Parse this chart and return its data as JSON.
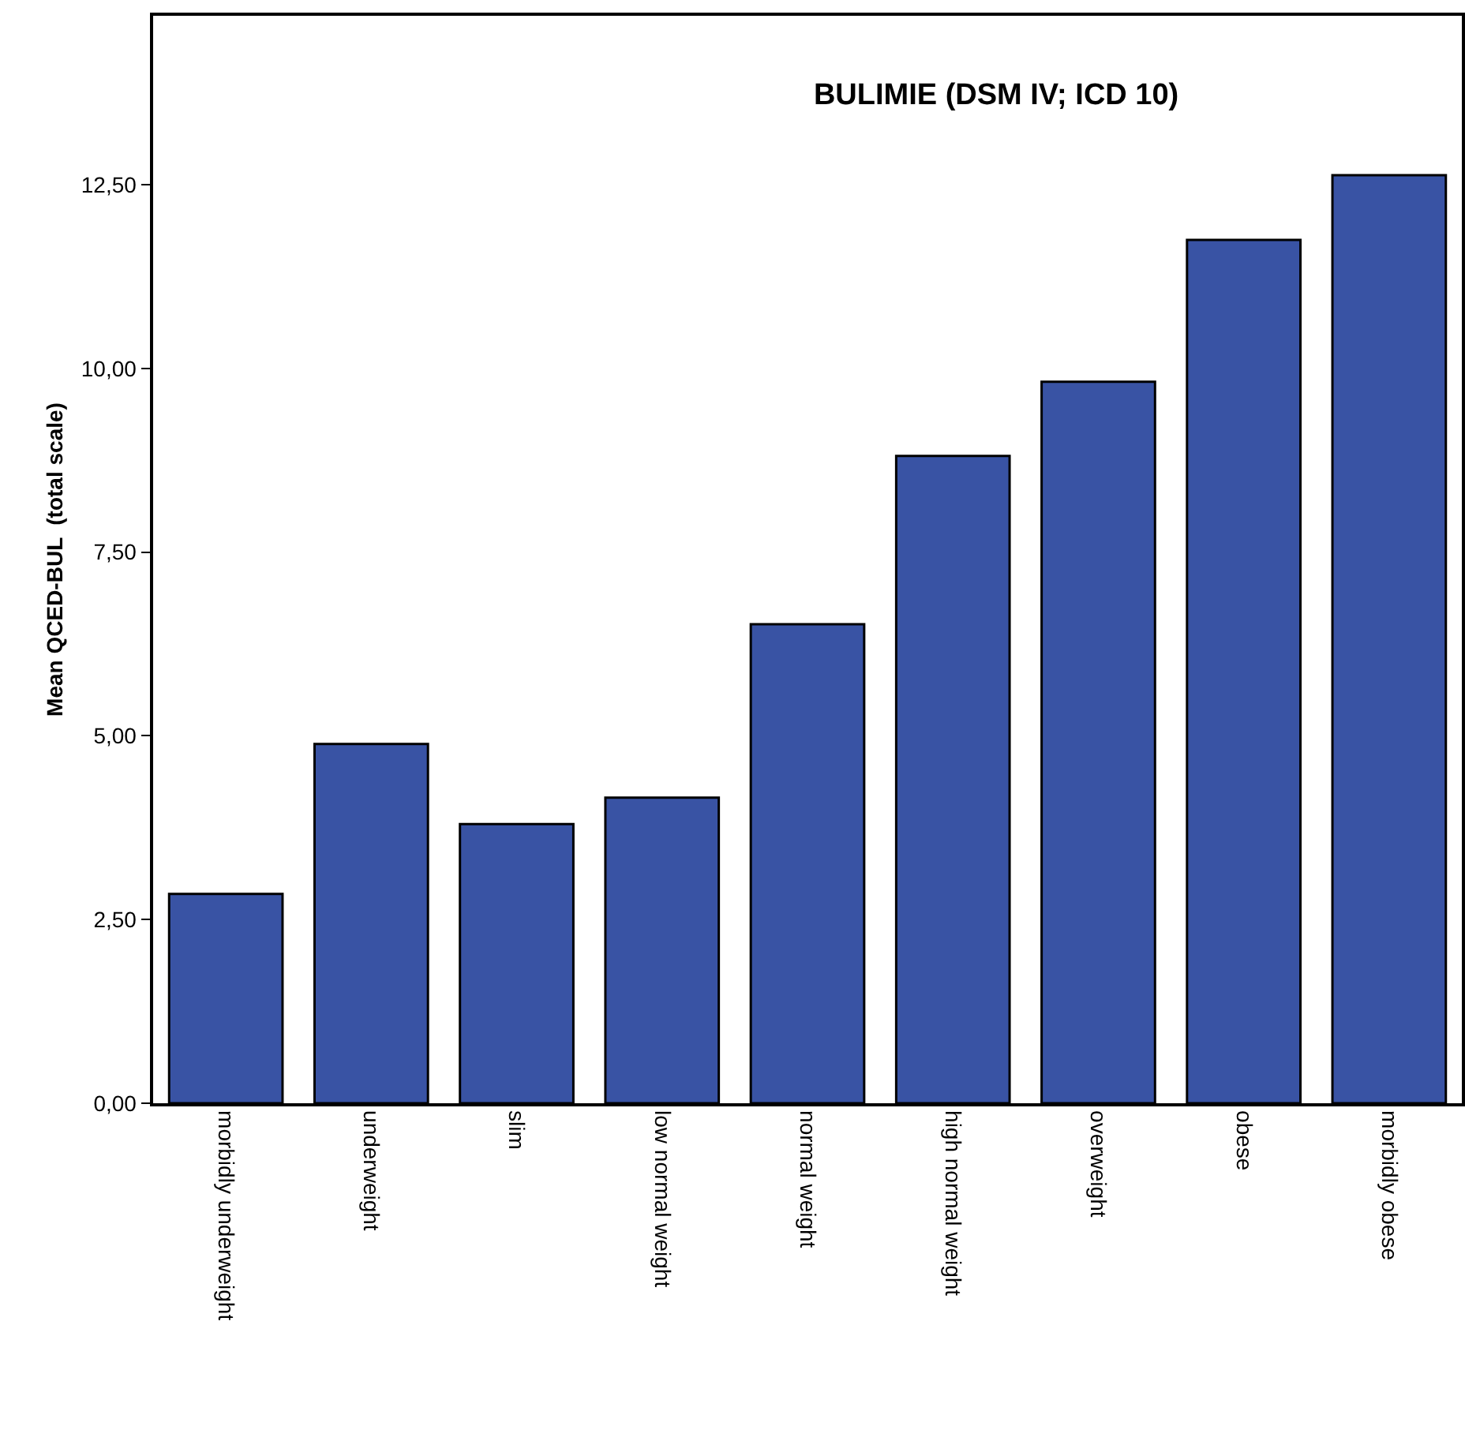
{
  "chart_data": {
    "type": "bar",
    "title": "BULIMIE (DSM IV; ICD 10)",
    "ylabel": "Mean QCED-BUL  (total scale)",
    "categories": [
      "morbidly underweight",
      "underweight",
      "slim",
      "low normal weight",
      "normal weight",
      "high normal weight",
      "overweight",
      "obese",
      "morbidly obese"
    ],
    "values": [
      2.85,
      4.89,
      3.8,
      4.16,
      6.52,
      8.81,
      9.82,
      11.75,
      12.63
    ],
    "color": "#3953a4",
    "ylim": [
      0,
      14.8
    ],
    "yticks": [
      {
        "value": 0,
        "label": "0,00"
      },
      {
        "value": 2.5,
        "label": "2,50"
      },
      {
        "value": 5,
        "label": "5,00"
      },
      {
        "value": 7.5,
        "label": "7,50"
      },
      {
        "value": 10,
        "label": "10,00"
      },
      {
        "value": 12.5,
        "label": "12,50"
      }
    ],
    "grid": false
  }
}
